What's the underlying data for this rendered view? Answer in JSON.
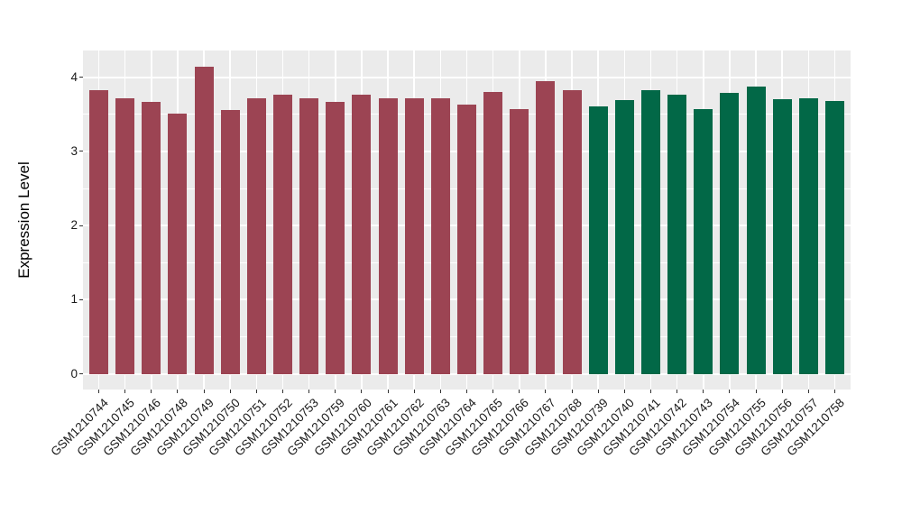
{
  "chart_data": {
    "type": "bar",
    "ylabel": "Expression Level",
    "xlabel": "",
    "ylim": [
      -0.21,
      4.36
    ],
    "y_major_ticks": [
      0,
      1,
      2,
      3,
      4
    ],
    "y_minor_ticks": [
      0.5,
      1.5,
      2.5,
      3.5
    ],
    "x_tick_rotation_deg": 45,
    "grid": "on",
    "legend_position": "none",
    "panel_bg_color": "#EBEBEB",
    "grid_color": "#FFFFFF",
    "tick_mark_color": "#333333",
    "axis_text_color": "#1A1A1A",
    "group_colors": {
      "maroon": "#9C4453",
      "green": "#026847"
    },
    "bars": [
      {
        "label": "GSM1210744",
        "value": 3.83,
        "group": "maroon"
      },
      {
        "label": "GSM1210745",
        "value": 3.71,
        "group": "maroon"
      },
      {
        "label": "GSM1210746",
        "value": 3.67,
        "group": "maroon"
      },
      {
        "label": "GSM1210748",
        "value": 3.51,
        "group": "maroon"
      },
      {
        "label": "GSM1210749",
        "value": 4.14,
        "group": "maroon"
      },
      {
        "label": "GSM1210750",
        "value": 3.56,
        "group": "maroon"
      },
      {
        "label": "GSM1210751",
        "value": 3.71,
        "group": "maroon"
      },
      {
        "label": "GSM1210752",
        "value": 3.76,
        "group": "maroon"
      },
      {
        "label": "GSM1210753",
        "value": 3.71,
        "group": "maroon"
      },
      {
        "label": "GSM1210759",
        "value": 3.67,
        "group": "maroon"
      },
      {
        "label": "GSM1210760",
        "value": 3.77,
        "group": "maroon"
      },
      {
        "label": "GSM1210761",
        "value": 3.72,
        "group": "maroon"
      },
      {
        "label": "GSM1210762",
        "value": 3.71,
        "group": "maroon"
      },
      {
        "label": "GSM1210763",
        "value": 3.71,
        "group": "maroon"
      },
      {
        "label": "GSM1210764",
        "value": 3.63,
        "group": "maroon"
      },
      {
        "label": "GSM1210765",
        "value": 3.8,
        "group": "maroon"
      },
      {
        "label": "GSM1210766",
        "value": 3.57,
        "group": "maroon"
      },
      {
        "label": "GSM1210767",
        "value": 3.95,
        "group": "maroon"
      },
      {
        "label": "GSM1210768",
        "value": 3.82,
        "group": "maroon"
      },
      {
        "label": "GSM1210739",
        "value": 3.61,
        "group": "green"
      },
      {
        "label": "GSM1210740",
        "value": 3.69,
        "group": "green"
      },
      {
        "label": "GSM1210741",
        "value": 3.82,
        "group": "green"
      },
      {
        "label": "GSM1210742",
        "value": 3.77,
        "group": "green"
      },
      {
        "label": "GSM1210743",
        "value": 3.57,
        "group": "green"
      },
      {
        "label": "GSM1210754",
        "value": 3.79,
        "group": "green"
      },
      {
        "label": "GSM1210755",
        "value": 3.87,
        "group": "green"
      },
      {
        "label": "GSM1210756",
        "value": 3.7,
        "group": "green"
      },
      {
        "label": "GSM1210757",
        "value": 3.72,
        "group": "green"
      },
      {
        "label": "GSM1210758",
        "value": 3.68,
        "group": "green"
      }
    ]
  }
}
